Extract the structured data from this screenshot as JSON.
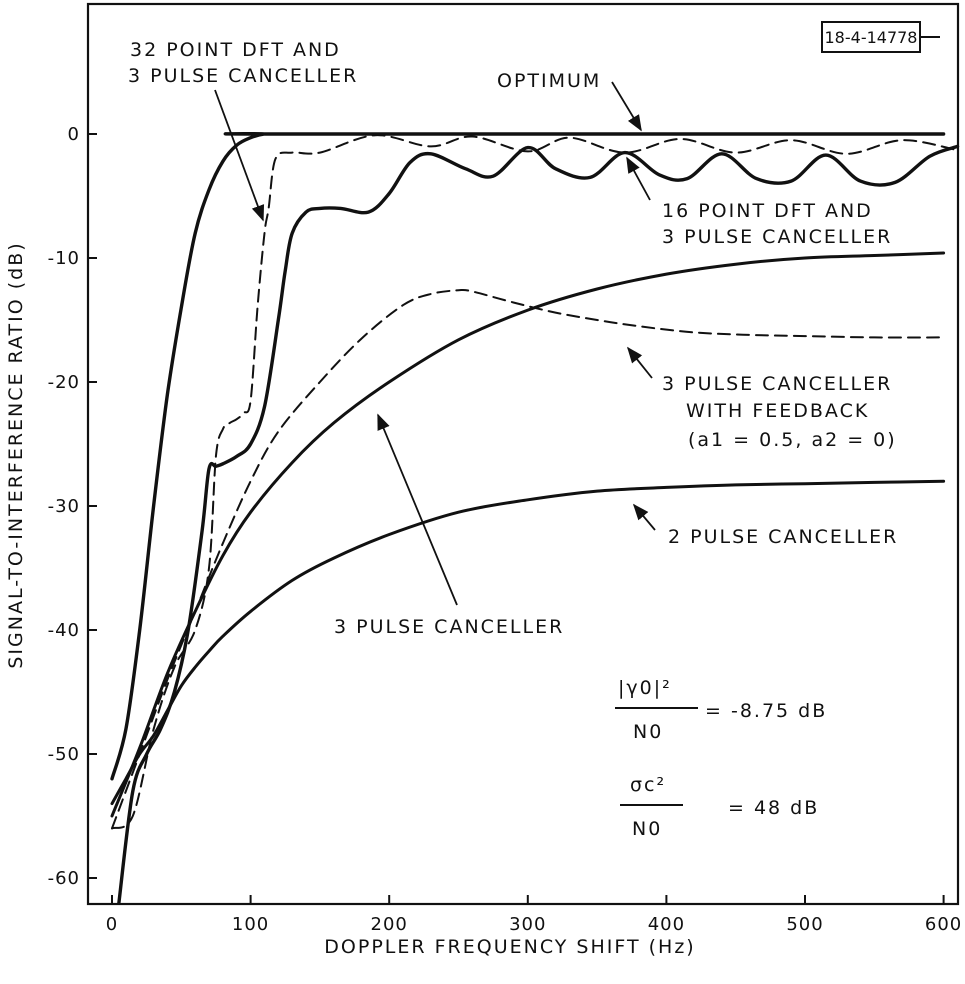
{
  "chart_data": {
    "type": "line",
    "id_label": "18-4-14778",
    "xlabel": "DOPPLER FREQUENCY SHIFT (Hz)",
    "ylabel": "SIGNAL-TO-INTERFERENCE RATIO (dB)",
    "xlim": [
      -5,
      610
    ],
    "ylim": [
      -64,
      10
    ],
    "xticks": [
      0,
      100,
      200,
      300,
      400,
      500,
      600
    ],
    "yticks": [
      0,
      -10,
      -20,
      -30,
      -40,
      -50,
      -60
    ],
    "grid": false,
    "legend": "none (curves annotated with text labels and arrows)",
    "annotations": {
      "optimum": "OPTIMUM",
      "dft32_line1": "32 POINT DFT AND",
      "dft32_line2": "3 PULSE CANCELLER",
      "dft16_line1": "16 POINT DFT AND",
      "dft16_line2": "3 PULSE CANCELLER",
      "feedback_line1": "3 PULSE CANCELLER",
      "feedback_line2": "WITH FEEDBACK",
      "feedback_line3": "(a1 = 0.5, a2 = 0)",
      "pc2": "2 PULSE CANCELLER",
      "pc3": "3 PULSE CANCELLER",
      "eq1_num": "|γ0|²",
      "eq1_den": "N0",
      "eq1_val": "= -8.75 dB",
      "eq2_num": "σc²",
      "eq2_den": "N0",
      "eq2_val": "= 48 dB"
    },
    "series": [
      {
        "name": "OPTIMUM",
        "style": "solid",
        "x": [
          0,
          10,
          20,
          30,
          40,
          50,
          60,
          70,
          80,
          90,
          100,
          110,
          120,
          600
        ],
        "y": [
          -52,
          -48,
          -40,
          -30,
          -21,
          -14,
          -8,
          -4.5,
          -2.2,
          -0.9,
          -0.3,
          0,
          0,
          0
        ]
      },
      {
        "name": "32 POINT DFT AND 3 PULSE CANCELLER",
        "style": "dashed",
        "x": [
          0,
          15,
          30,
          45,
          60,
          70,
          75,
          80,
          85,
          90,
          95,
          100,
          105,
          110,
          113,
          118,
          130,
          150,
          190,
          230,
          260,
          300,
          330,
          370,
          410,
          450,
          490,
          530,
          570,
          610
        ],
        "y": [
          -56,
          -55,
          -48,
          -43,
          -40,
          -35,
          -26,
          -23.8,
          -23.3,
          -23,
          -22.5,
          -21.5,
          -14,
          -8,
          -6,
          -2,
          -1.5,
          -1.5,
          -0.1,
          -1,
          -0.2,
          -1.4,
          -0.3,
          -1.5,
          -0.4,
          -1.5,
          -0.5,
          -1.6,
          -0.5,
          -1.3
        ]
      },
      {
        "name": "16 POINT DFT AND 3 PULSE CANCELLER",
        "style": "solid",
        "x": [
          5,
          15,
          25,
          35,
          45,
          55,
          65,
          70,
          75,
          80,
          90,
          100,
          110,
          120,
          125,
          130,
          140,
          150,
          165,
          185,
          200,
          215,
          230,
          255,
          275,
          300,
          320,
          345,
          370,
          395,
          415,
          440,
          465,
          490,
          515,
          540,
          565,
          590,
          610
        ],
        "y": [
          -62,
          -53,
          -50,
          -48,
          -45,
          -40,
          -32,
          -27,
          -26.8,
          -26.6,
          -26,
          -25,
          -22,
          -15,
          -11,
          -8,
          -6.3,
          -6,
          -6,
          -6.3,
          -4.8,
          -2.3,
          -1.6,
          -2.8,
          -3.4,
          -1.1,
          -2.8,
          -3.5,
          -1.5,
          -3.3,
          -3.6,
          -1.6,
          -3.6,
          -3.8,
          -1.7,
          -3.8,
          -3.9,
          -1.8,
          -1
        ]
      },
      {
        "name": "3 PULSE CANCELLER WITH FEEDBACK",
        "style": "dashed",
        "x": [
          0,
          20,
          40,
          60,
          80,
          100,
          120,
          150,
          180,
          210,
          230,
          250,
          260,
          290,
          320,
          350,
          380,
          420,
          460,
          500,
          550,
          600
        ],
        "y": [
          -56,
          -50,
          -44,
          -38.5,
          -33,
          -28,
          -24,
          -20,
          -16.5,
          -13.8,
          -12.9,
          -12.6,
          -12.7,
          -13.6,
          -14.4,
          -15,
          -15.5,
          -16,
          -16.2,
          -16.3,
          -16.4,
          -16.4
        ]
      },
      {
        "name": "3 PULSE CANCELLER",
        "style": "solid",
        "x": [
          0,
          20,
          40,
          60,
          80,
          100,
          130,
          160,
          200,
          250,
          300,
          350,
          400,
          450,
          500,
          550,
          600
        ],
        "y": [
          -55,
          -49.5,
          -43.5,
          -38.5,
          -34,
          -30.5,
          -26.5,
          -23.3,
          -20,
          -16.6,
          -14.2,
          -12.5,
          -11.3,
          -10.5,
          -10,
          -9.8,
          -9.6
        ]
      },
      {
        "name": "2 PULSE CANCELLER",
        "style": "solid",
        "x": [
          0,
          10,
          20,
          30,
          40,
          50,
          60,
          70,
          80,
          100,
          130,
          160,
          200,
          250,
          300,
          350,
          400,
          450,
          500,
          550,
          600
        ],
        "y": [
          -54,
          -52,
          -50,
          -48.5,
          -46.5,
          -44.5,
          -43,
          -41.7,
          -40.5,
          -38.5,
          -36,
          -34.2,
          -32.3,
          -30.5,
          -29.5,
          -28.8,
          -28.5,
          -28.3,
          -28.2,
          -28.1,
          -28
        ]
      }
    ]
  }
}
